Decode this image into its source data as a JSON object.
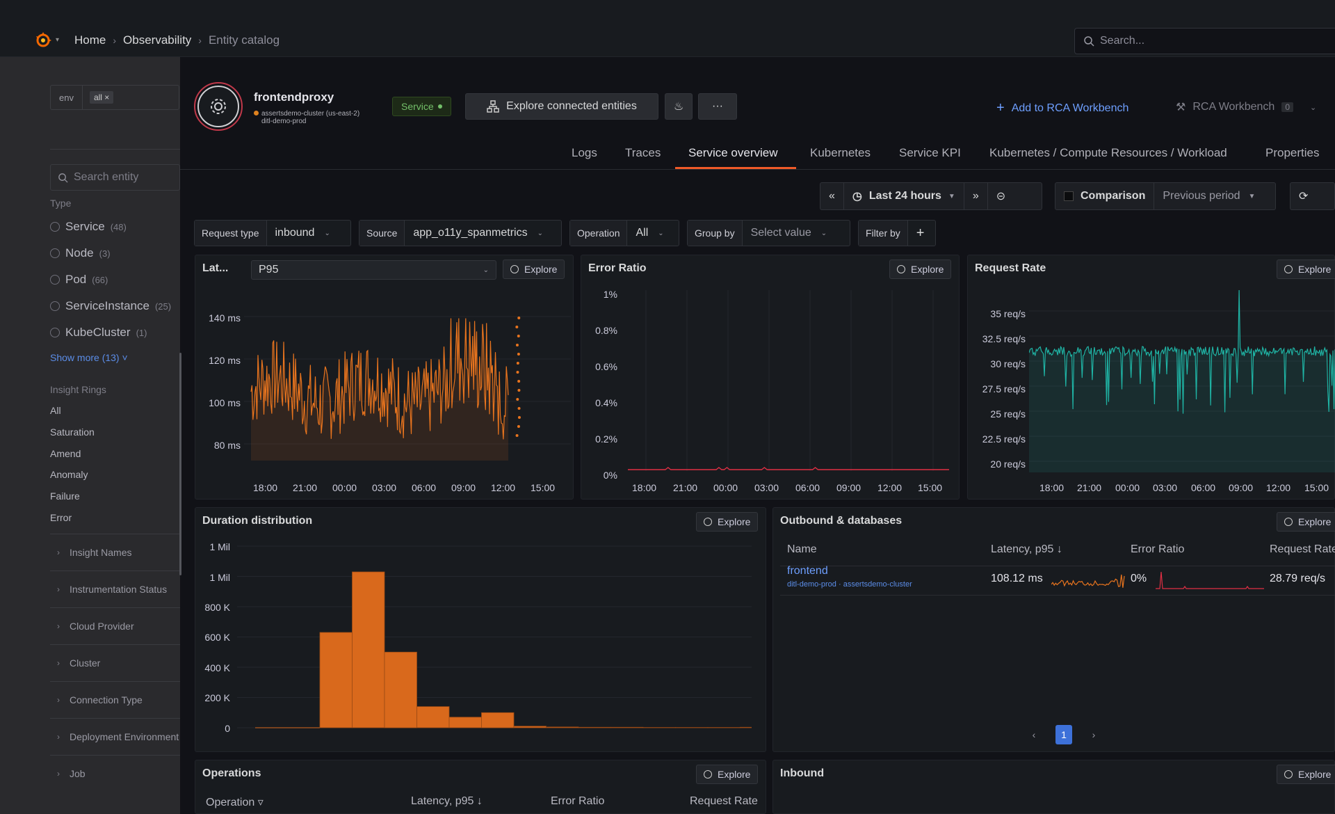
{
  "topbar": {
    "breadcrumbs": [
      "Home",
      "Observability",
      "Entity catalog"
    ],
    "search_placeholder": "Search..."
  },
  "sidebar": {
    "filter_key": "env",
    "filter_chip": "all ×",
    "search_placeholder": "Search entity",
    "type_heading": "Type",
    "types": [
      {
        "label": "Service",
        "count": "(48)"
      },
      {
        "label": "Node",
        "count": "(3)"
      },
      {
        "label": "Pod",
        "count": "(66)"
      },
      {
        "label": "ServiceInstance",
        "count": "(25)"
      },
      {
        "label": "KubeCluster",
        "count": "(1)"
      }
    ],
    "show_more": "Show more (13) ˅",
    "rings_heading": "Insight Rings",
    "rings": [
      "All",
      "Saturation",
      "Amend",
      "Anomaly",
      "Failure",
      "Error"
    ],
    "sections": [
      "Insight Names",
      "Instrumentation Status",
      "Cloud Provider",
      "Cluster",
      "Connection Type",
      "Deployment Environment",
      "Job"
    ]
  },
  "entity": {
    "name": "frontendproxy",
    "cluster": "assertsdemo-cluster (us-east-2)",
    "env": "ditl-demo-prod",
    "badge": "Service",
    "explore_connected": "Explore connected entities",
    "more": "···",
    "add_rca": "Add to RCA Workbench",
    "rca_workbench": "RCA Workbench",
    "rca_count": "0"
  },
  "tabs": [
    "Logs",
    "Traces",
    "Service overview",
    "Kubernetes",
    "Service KPI",
    "Kubernetes / Compute Resources / Workload",
    "Properties"
  ],
  "timebar": {
    "back": "«",
    "range": "Last 24 hours",
    "forward": "»",
    "comparison": "Comparison",
    "previous": "Previous period"
  },
  "filters": {
    "request_type_label": "Request type",
    "request_type": "inbound",
    "source_label": "Source",
    "source": "app_o11y_spanmetrics",
    "operation_label": "Operation",
    "operation": "All",
    "group_by_label": "Group by",
    "group_by": "Select value",
    "filter_by_label": "Filter by",
    "add": "+"
  },
  "explore_label": "Explore",
  "latency_panel": {
    "title": "Lat...",
    "percentile": "P95",
    "y_ticks": [
      "140 ms",
      "120 ms",
      "100 ms",
      "80 ms"
    ],
    "x_ticks": [
      "18:00",
      "21:00",
      "00:00",
      "03:00",
      "06:00",
      "09:00",
      "12:00",
      "15:00"
    ],
    "color": "#e8741e"
  },
  "error_panel": {
    "title": "Error Ratio",
    "y_ticks": [
      "1%",
      "0.8%",
      "0.6%",
      "0.4%",
      "0.2%",
      "0%"
    ],
    "x_ticks": [
      "18:00",
      "21:00",
      "00:00",
      "03:00",
      "06:00",
      "09:00",
      "12:00",
      "15:00"
    ],
    "color": "#e02f44"
  },
  "rate_panel": {
    "title": "Request Rate",
    "y_ticks": [
      "35 req/s",
      "32.5 req/s",
      "30 req/s",
      "27.5 req/s",
      "25 req/s",
      "22.5 req/s",
      "20 req/s"
    ],
    "x_ticks": [
      "18:00",
      "21:00",
      "00:00",
      "03:00",
      "06:00",
      "09:00",
      "12:00",
      "15:00"
    ],
    "color": "#1fb3a4"
  },
  "duration_panel": {
    "title": "Duration distribution",
    "y_ticks": [
      "1 Mil",
      "1 Mil",
      "800 K",
      "600 K",
      "400 K",
      "200 K",
      "0"
    ],
    "color": "#d9691c"
  },
  "chart_data": [
    {
      "type": "line",
      "title": "Lat...",
      "series": [
        {
          "name": "P95"
        }
      ],
      "ylim": [
        70,
        155
      ],
      "x_ticks": [
        "18:00",
        "21:00",
        "00:00",
        "03:00",
        "06:00",
        "09:00",
        "12:00",
        "15:00"
      ]
    },
    {
      "type": "line",
      "title": "Error Ratio",
      "series": [
        {
          "values": [
            0,
            0,
            0,
            0,
            0,
            0,
            0,
            0
          ]
        }
      ],
      "ylim": [
        0,
        1
      ]
    },
    {
      "type": "line",
      "title": "Request Rate",
      "ylim": [
        19,
        36
      ]
    },
    {
      "type": "bar",
      "title": "Duration distribution",
      "values": [
        0,
        0,
        630000,
        1030000,
        500000,
        140000,
        70000,
        100000,
        10000,
        5000,
        3000,
        3000,
        2000,
        2000,
        2000,
        3000,
        2000,
        0
      ],
      "ylim": [
        0,
        1200000
      ]
    }
  ],
  "outbound": {
    "title": "Outbound & databases",
    "columns": [
      "Name",
      "Latency, p95",
      "Error Ratio",
      "Request Rate"
    ],
    "rows": [
      {
        "name": "frontend",
        "sub": "ditl-demo-prod · assertsdemo-cluster",
        "latency": "108.12 ms",
        "error": "0%",
        "rate": "28.79 req/s"
      }
    ],
    "page": "1"
  },
  "operations": {
    "title": "Operations",
    "columns": [
      "Operation",
      "Latency, p95",
      "Error Ratio",
      "Request Rate"
    ]
  },
  "inbound": {
    "title": "Inbound"
  }
}
